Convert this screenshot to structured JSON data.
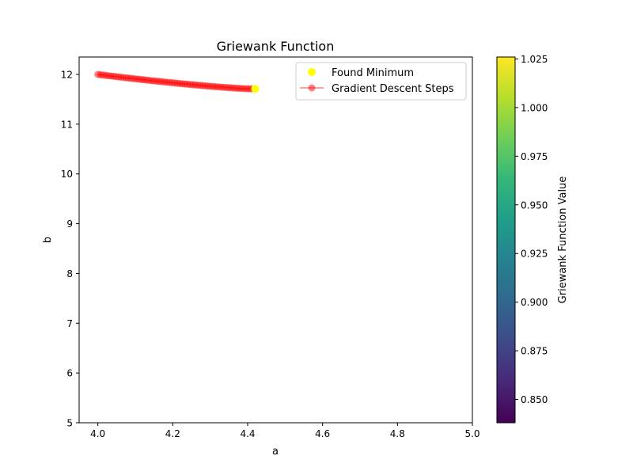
{
  "chart_data": {
    "type": "scatter",
    "title": "Griewank Function",
    "xlabel": "a",
    "ylabel": "b",
    "xlim": [
      3.95,
      5.0
    ],
    "ylim": [
      5.0,
      12.35
    ],
    "xticks": [
      "4.0",
      "4.2",
      "4.4",
      "4.6",
      "4.8",
      "5.0"
    ],
    "xtick_values": [
      4.0,
      4.2,
      4.4,
      4.6,
      4.8,
      5.0
    ],
    "yticks": [
      "5",
      "6",
      "7",
      "8",
      "9",
      "10",
      "11",
      "12"
    ],
    "ytick_values": [
      5,
      6,
      7,
      8,
      9,
      10,
      11,
      12
    ],
    "grid": false,
    "legend_position": "top-right",
    "series": [
      {
        "name": "Gradient Descent Steps",
        "kind": "line-with-markers",
        "color": "#ff0000",
        "path_start": [
          4.0,
          12.0
        ],
        "path_end": [
          4.41,
          11.71
        ],
        "steps": 60
      },
      {
        "name": "Found Minimum",
        "kind": "scatter",
        "color": "#ffff00",
        "points": [
          [
            4.42,
            11.71
          ]
        ]
      }
    ],
    "colorbar": {
      "label": "Griewank Function Value",
      "range": [
        0.838,
        1.026
      ],
      "ticks": [
        "0.850",
        "0.875",
        "0.900",
        "0.925",
        "0.950",
        "0.975",
        "1.000",
        "1.025"
      ],
      "tick_values": [
        0.85,
        0.875,
        0.9,
        0.925,
        0.95,
        0.975,
        1.0,
        1.025
      ],
      "colormap": "viridis",
      "colors": [
        "#440154",
        "#482878",
        "#3e4a89",
        "#31688e",
        "#26828e",
        "#1f9e89",
        "#35b779",
        "#6ece58",
        "#b5de2b",
        "#fde725"
      ]
    }
  }
}
